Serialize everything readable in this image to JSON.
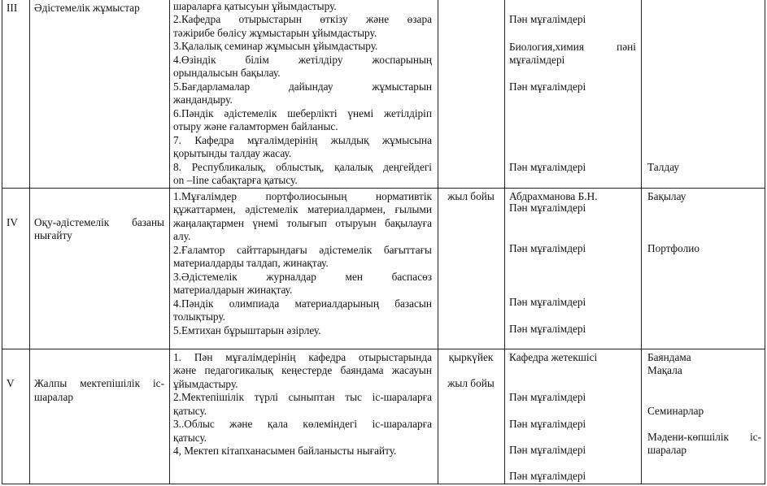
{
  "rows": [
    {
      "num": "III",
      "title": [
        "Әдістемелік жұмыстар"
      ],
      "content": [
        "шараларға қатысуын ұйымдастыру.",
        "2.Кафедра отырыстарын өткізу және өзара",
        "тәжірибе бөлісу жұмыстарын ұйымдастыру.",
        "3.Қалалық семинар жұмысын ұйымдастыру.",
        "4.Өзіндік білім жетілдіру жоспарының",
        "орындалысын бақылау.",
        "5.Бағдарламалар дайындау жұмыстарын",
        "жандандыру.",
        "6.Пәндік әдістемелік шеберлікті үнемі жетілдіріп",
        "отыру және ғаламтормен байланыс.",
        "7. Кафедра мұғалімдерінің жылдық жұмысына",
        "қорытынды талдау жасау.",
        "8. Республикалық, облыстық, қалалық деңгейдегі",
        "on –Iine сабақтарға қатысу."
      ],
      "time": [],
      "responsible": [
        "Пән мұғалімдері",
        "Биология,химия пәні",
        "мұғалімдері",
        "Пән мұғалімдері",
        "Пән мұғалімдері"
      ],
      "form": [
        "Талдау"
      ]
    },
    {
      "num": "IV",
      "title": [
        "Оқу-әдістемелік базаны",
        "нығайту"
      ],
      "content": [
        "1.Мұғалімдер портфолиосының нормативтік",
        "құжаттармен, әдістемелік материалдармен, ғылыми",
        "жаңалақтармен үнемі толығып отыруын бақылауға",
        "алу.",
        "2.Ғаламтор сайттарындағы әдістемелік бағыттағы",
        "материалдарды талдап, жинақтау.",
        "3.Әдістемелік журналдар мен баспасөз",
        "материалдарын жинақтау.",
        "4.Пәндік олимпиада материалдарының базасын",
        "толықтыру.",
        "5.Емтихан бұрыштарын әзірлеу."
      ],
      "time": [
        "жыл бойы"
      ],
      "responsible": [
        "Абдрахманова Б.Н.",
        "Пән мұғалімдері",
        "Пән мұғалімдері",
        "Пән мұғалімдері",
        "Пән мұғалімдері"
      ],
      "form": [
        "Бақылау",
        "Портфолио"
      ]
    },
    {
      "num": "V",
      "title": [
        "Жалпы мектепішілік іс-",
        "шаралар"
      ],
      "content": [
        "1. Пән мұғалімдерінің кафедра отырыстарында",
        "және педагогикалық кеңестерде баяндама жасауын",
        "ұйымдастыру.",
        "2.Мектепішілік  түрлі сыныптан тыс іс-шараларға",
        "қатысу.",
        "3..Облыс және қала көлеміндегі іс-шараларға",
        "қатысу.",
        "4, Мектеп кітапханасымен байланысты нығайту."
      ],
      "time": [
        "қыркүйек",
        "жыл бойы"
      ],
      "responsible": [
        "Кафедра жетекшісі",
        "Пән мұғалімдері",
        "Пән мұғалімдері",
        "Пән мұғалімдері",
        "Пән мұғалімдері"
      ],
      "form": [
        "Баяндама",
        "Мақала",
        "Семинарлар",
        "Мәдени-көпшілік іс-",
        "шаралар"
      ]
    }
  ]
}
